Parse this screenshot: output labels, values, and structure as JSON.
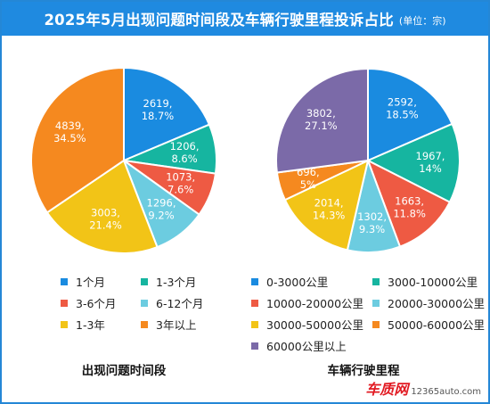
{
  "header": {
    "title": "2025年5月出现问题时间段及车辆行驶里程投诉占比",
    "unit": "(单位：宗)"
  },
  "chart_data": [
    {
      "type": "pie",
      "title": "出现问题时间段",
      "slices": [
        {
          "name": "1个月",
          "value": 2619,
          "percent": "18.7%",
          "color": "#1a8be0"
        },
        {
          "name": "1-3个月",
          "value": 1206,
          "percent": "8.6%",
          "color": "#16b5a0"
        },
        {
          "name": "3-6个月",
          "value": 1073,
          "percent": "7.6%",
          "color": "#ee5a43"
        },
        {
          "name": "6-12个月",
          "value": 1296,
          "percent": "9.2%",
          "color": "#6ccce0"
        },
        {
          "name": "1-3年",
          "value": 3003,
          "percent": "21.4%",
          "color": "#f2c417"
        },
        {
          "name": "3年以上",
          "value": 4839,
          "percent": "34.5%",
          "color": "#f5891f"
        }
      ]
    },
    {
      "type": "pie",
      "title": "车辆行驶里程",
      "slices": [
        {
          "name": "0-3000公里",
          "value": 2592,
          "percent": "18.5%",
          "color": "#1a8be0"
        },
        {
          "name": "3000-10000公里",
          "value": 1967,
          "percent": "14%",
          "color": "#16b5a0"
        },
        {
          "name": "10000-20000公里",
          "value": 1663,
          "percent": "11.8%",
          "color": "#ee5a43"
        },
        {
          "name": "20000-30000公里",
          "value": 1302,
          "percent": "9.3%",
          "color": "#6ccce0"
        },
        {
          "name": "30000-50000公里",
          "value": 2014,
          "percent": "14.3%",
          "color": "#f2c417"
        },
        {
          "name": "50000-60000公里",
          "value": 696,
          "percent": "5%",
          "color": "#f5891f"
        },
        {
          "name": "60000公里以上",
          "value": 3802,
          "percent": "27.1%",
          "color": "#7b6aa8"
        }
      ]
    }
  ],
  "watermark": {
    "logo": "车质网",
    "url": "12365auto.com"
  }
}
